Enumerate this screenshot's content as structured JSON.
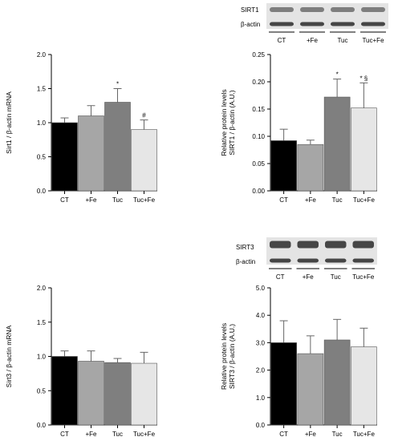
{
  "colors": {
    "CT": "#000000",
    "+Fe": "#a6a6a6",
    "Tuc": "#7f7f7f",
    "Tuc+Fe": "#e6e6e6",
    "bar_edge": "#555555",
    "axis": "#000000",
    "blot_bg": "#e4e4e4",
    "band": "#2a2a2a"
  },
  "blots": [
    {
      "labels": [
        "SIRT1",
        "β-actin"
      ],
      "lanes": [
        "CT",
        "+Fe",
        "Tuc",
        "Tuc+Fe"
      ]
    },
    {
      "labels": [
        "SIRT3",
        "β-actin"
      ],
      "lanes": [
        "CT",
        "+Fe",
        "Tuc",
        "Tuc+Fe"
      ]
    }
  ],
  "chart_data": [
    {
      "type": "bar",
      "categories": [
        "CT",
        "+Fe",
        "Tuc",
        "Tuc+Fe"
      ],
      "values": [
        1.0,
        1.1,
        1.3,
        0.9
      ],
      "errors": [
        0.07,
        0.15,
        0.2,
        0.14
      ],
      "annotations": [
        "",
        "",
        "*",
        "#"
      ],
      "ylabel": "Sirt1 / β-actin mRNA",
      "ylim": [
        0,
        2.0
      ],
      "yticks": [
        "0.0",
        "0.5",
        "1.0",
        "1.5",
        "2.0"
      ],
      "grid": false
    },
    {
      "type": "bar",
      "categories": [
        "CT",
        "+Fe",
        "Tuc",
        "Tuc+Fe"
      ],
      "values": [
        0.092,
        0.085,
        0.172,
        0.152
      ],
      "errors": [
        0.021,
        0.008,
        0.033,
        0.046
      ],
      "annotations": [
        "",
        "",
        "*",
        "* §"
      ],
      "ylabel": [
        "Relative protein levels",
        "SIRT1 / β-actin (A.U.)"
      ],
      "ylim": [
        0,
        0.25
      ],
      "yticks": [
        "0.00",
        "0.05",
        "0.10",
        "0.15",
        "0.20",
        "0.25"
      ],
      "grid": false
    },
    {
      "type": "bar",
      "categories": [
        "CT",
        "+Fe",
        "Tuc",
        "Tuc+Fe"
      ],
      "values": [
        1.0,
        0.93,
        0.91,
        0.9
      ],
      "errors": [
        0.08,
        0.15,
        0.06,
        0.16
      ],
      "annotations": [
        "",
        "",
        "",
        ""
      ],
      "ylabel": "Sirt3 / β-actin  mRNA",
      "ylim": [
        0,
        2.0
      ],
      "yticks": [
        "0.0",
        "0.5",
        "1.0",
        "1.5",
        "2.0"
      ],
      "grid": false
    },
    {
      "type": "bar",
      "categories": [
        "CT",
        "+Fe",
        "Tuc",
        "Tuc+Fe"
      ],
      "values": [
        3.0,
        2.6,
        3.1,
        2.85
      ],
      "errors": [
        0.8,
        0.65,
        0.75,
        0.68
      ],
      "annotations": [
        "",
        "",
        "",
        ""
      ],
      "ylabel": [
        "Relative protein levels",
        "SIRT3 / β-actin (A.U.)"
      ],
      "ylim": [
        0,
        5.0
      ],
      "yticks": [
        "0.0",
        "1.0",
        "2.0",
        "3.0",
        "4.0",
        "5.0"
      ],
      "grid": false
    }
  ]
}
